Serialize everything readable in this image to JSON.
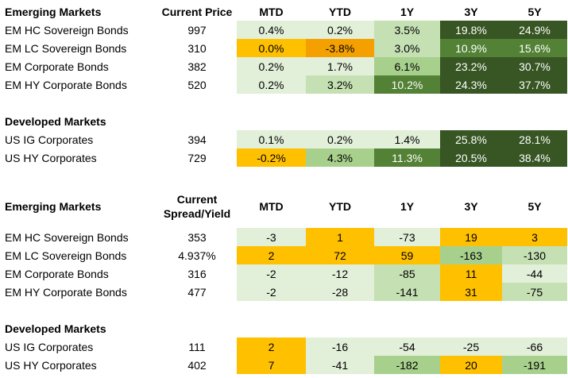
{
  "columns": {
    "mtd": "MTD",
    "ytd": "YTD",
    "y1": "1Y",
    "y3": "3Y",
    "y5": "5Y"
  },
  "colors": {
    "pale_green": "#e2efd9",
    "light_green": "#c5e0b3",
    "mid_green": "#a8d08d",
    "dark_green": "#538135",
    "darkest_green": "#375623",
    "yellow": "#ffc000",
    "orange": "#f4a100",
    "orange_dark": "#ed8b00"
  },
  "returns": {
    "em_header": "Emerging Markets",
    "price_header": "Current Price",
    "em_rows": [
      {
        "name": "EM HC Sovereign Bonds",
        "price": "997",
        "mtd": "0.4%",
        "ytd": "0.2%",
        "y1": "3.5%",
        "y3": "19.8%",
        "y5": "24.9%"
      },
      {
        "name": "EM LC Sovereign Bonds",
        "price": "310",
        "mtd": "0.0%",
        "ytd": "-3.8%",
        "y1": "3.0%",
        "y3": "10.9%",
        "y5": "15.6%"
      },
      {
        "name": "EM Corporate Bonds",
        "price": "382",
        "mtd": "0.2%",
        "ytd": "1.7%",
        "y1": "6.1%",
        "y3": "23.2%",
        "y5": "30.7%"
      },
      {
        "name": "EM HY Corporate Bonds",
        "price": "520",
        "mtd": "0.2%",
        "ytd": "3.2%",
        "y1": "10.2%",
        "y3": "24.3%",
        "y5": "37.7%"
      }
    ],
    "dm_header": "Developed Markets",
    "dm_rows": [
      {
        "name": "US IG Corporates",
        "price": "394",
        "mtd": "0.1%",
        "ytd": "0.2%",
        "y1": "1.4%",
        "y3": "25.8%",
        "y5": "28.1%"
      },
      {
        "name": "US HY Corporates",
        "price": "729",
        "mtd": "-0.2%",
        "ytd": "4.3%",
        "y1": "11.3%",
        "y3": "20.5%",
        "y5": "38.4%"
      }
    ]
  },
  "spreads": {
    "em_header": "Emerging Markets",
    "spread_header_line1": "Current",
    "spread_header_line2": "Spread/Yield",
    "em_rows": [
      {
        "name": "EM HC Sovereign Bonds",
        "value": "353",
        "mtd": "-3",
        "ytd": "1",
        "y1": "-73",
        "y3": "19",
        "y5": "3"
      },
      {
        "name": "EM LC Sovereign Bonds",
        "value": "4.937%",
        "mtd": "2",
        "ytd": "72",
        "y1": "59",
        "y3": "-163",
        "y5": "-130"
      },
      {
        "name": "EM Corporate Bonds",
        "value": "316",
        "mtd": "-2",
        "ytd": "-12",
        "y1": "-85",
        "y3": "11",
        "y5": "-44"
      },
      {
        "name": "EM HY Corporate Bonds",
        "value": "477",
        "mtd": "-2",
        "ytd": "-28",
        "y1": "-141",
        "y3": "31",
        "y5": "-75"
      }
    ],
    "dm_header": "Developed Markets",
    "dm_rows": [
      {
        "name": "US IG Corporates",
        "value": "111",
        "mtd": "2",
        "ytd": "-16",
        "y1": "-54",
        "y3": "-25",
        "y5": "-66"
      },
      {
        "name": "US HY Corporates",
        "value": "402",
        "mtd": "7",
        "ytd": "-41",
        "y1": "-182",
        "y3": "20",
        "y5": "-191"
      }
    ]
  }
}
